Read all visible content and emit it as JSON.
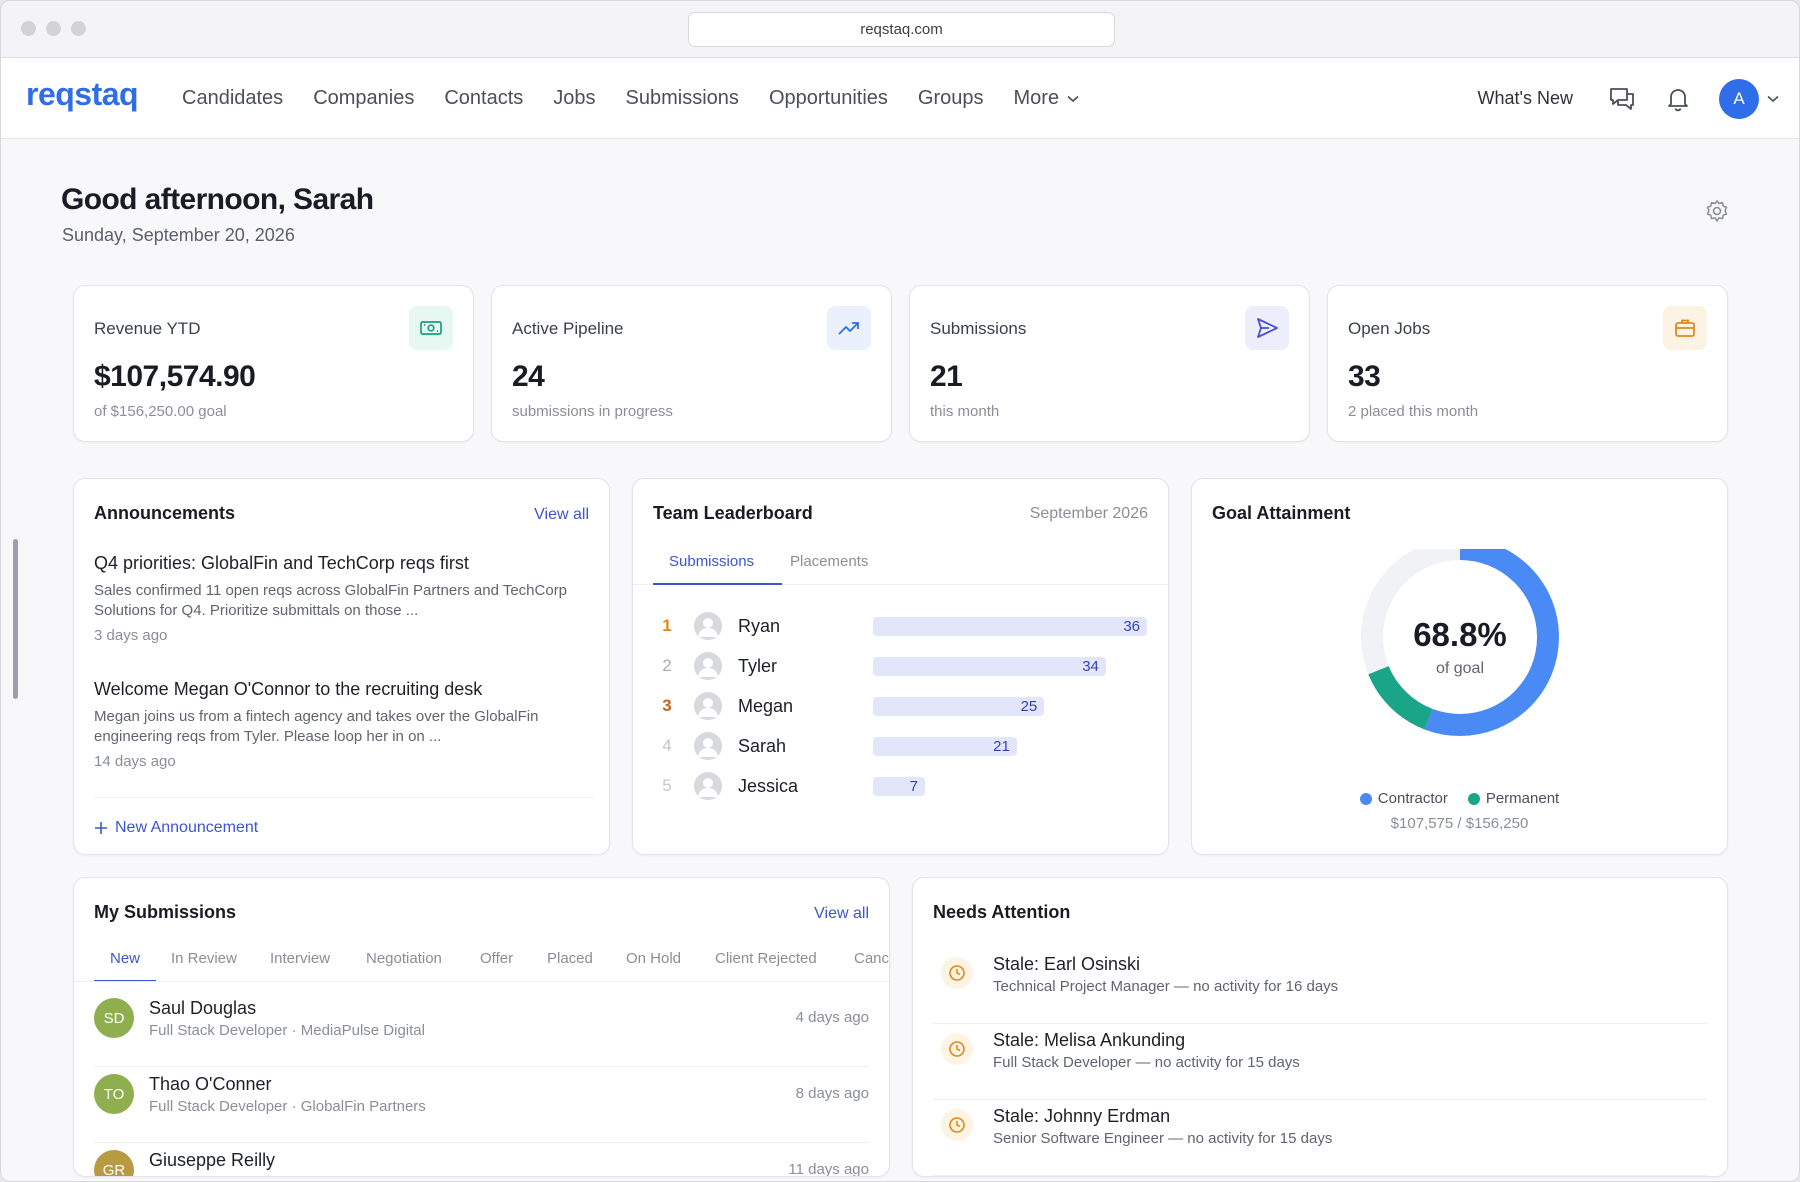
{
  "browser": {
    "url": "reqstaq.com"
  },
  "nav": {
    "logo": "reqstaq",
    "links": [
      "Candidates",
      "Companies",
      "Contacts",
      "Jobs",
      "Submissions",
      "Opportunities",
      "Groups",
      "More"
    ],
    "whats_new": "What's New",
    "avatar_initial": "A"
  },
  "header": {
    "greeting": "Good afternoon, Sarah",
    "date": "Sunday, September 20, 2026"
  },
  "stats": [
    {
      "title": "Revenue YTD",
      "value": "$107,574.90",
      "sub": "of $156,250.00 goal",
      "icon": "money-icon",
      "color": "#17a07a",
      "bg": "#e7f7f1"
    },
    {
      "title": "Active Pipeline",
      "value": "24",
      "sub": "submissions in progress",
      "icon": "trending-up-icon",
      "color": "#2f6ee8",
      "bg": "#eaf1fd"
    },
    {
      "title": "Submissions",
      "value": "21",
      "sub": "this month",
      "icon": "send-icon",
      "color": "#4b4fd6",
      "bg": "#edeefc"
    },
    {
      "title": "Open Jobs",
      "value": "33",
      "sub": "2 placed this month",
      "icon": "briefcase-icon",
      "color": "#e0891c",
      "bg": "#fdf3e4"
    }
  ],
  "announcements": {
    "title": "Announcements",
    "view_all": "View all",
    "items": [
      {
        "title": "Q4 priorities: GlobalFin and TechCorp reqs first",
        "body": "Sales confirmed 11 open reqs across GlobalFin Partners and TechCorp Solutions for Q4. Prioritize submittals on those ...",
        "time": "3 days ago"
      },
      {
        "title": "Welcome Megan O'Connor to the recruiting desk",
        "body": "Megan joins us from a fintech agency and takes over the GlobalFin engineering reqs from Tyler. Please loop her in on ...",
        "time": "14 days ago"
      }
    ],
    "new_label": "New Announcement"
  },
  "leaderboard": {
    "title": "Team Leaderboard",
    "period": "September 2026",
    "tabs": [
      "Submissions",
      "Placements"
    ],
    "rank_colors": [
      "#e0891c",
      "#a6aab4",
      "#c8621a",
      "#c3c6cd",
      "#c3c6cd"
    ],
    "rows": [
      {
        "rank": "1",
        "name": "Ryan",
        "value": 36
      },
      {
        "rank": "2",
        "name": "Tyler",
        "value": 34
      },
      {
        "rank": "3",
        "name": "Megan",
        "value": 25
      },
      {
        "rank": "4",
        "name": "Sarah",
        "value": 21
      },
      {
        "rank": "5",
        "name": "Jessica",
        "value": 7
      }
    ]
  },
  "goal": {
    "title": "Goal Attainment",
    "percent_label": "68.8%",
    "percent_sub": "of goal",
    "contractor_fraction": 0.558,
    "permanent_fraction": 0.13,
    "legend": [
      {
        "label": "Contractor",
        "color": "#4a8af4"
      },
      {
        "label": "Permanent",
        "color": "#1aa589"
      }
    ],
    "sub": "$107,575 / $156,250"
  },
  "my_submissions": {
    "title": "My Submissions",
    "view_all": "View all",
    "tabs": [
      "New",
      "In Review",
      "Interview",
      "Negotiation",
      "Offer",
      "Placed",
      "On Hold",
      "Client Rejected",
      "Canc"
    ],
    "rows": [
      {
        "initials": "SD",
        "name": "Saul Douglas",
        "role": "Full Stack Developer",
        "company": "MediaPulse Digital",
        "time": "4 days ago"
      },
      {
        "initials": "TO",
        "name": "Thao O'Conner",
        "role": "Full Stack Developer",
        "company": "GlobalFin Partners",
        "time": "8 days ago"
      },
      {
        "initials": "GR",
        "name": "Giuseppe Reilly",
        "role": "",
        "company": "",
        "time": "11 days ago"
      }
    ]
  },
  "needs_attention": {
    "title": "Needs Attention",
    "items": [
      {
        "title": "Stale: Earl Osinski",
        "sub": "Technical Project Manager — no activity for 16 days"
      },
      {
        "title": "Stale: Melisa Ankunding",
        "sub": "Full Stack Developer — no activity for 15 days"
      },
      {
        "title": "Stale: Johnny Erdman",
        "sub": "Senior Software Engineer — no activity for 15 days"
      }
    ]
  }
}
